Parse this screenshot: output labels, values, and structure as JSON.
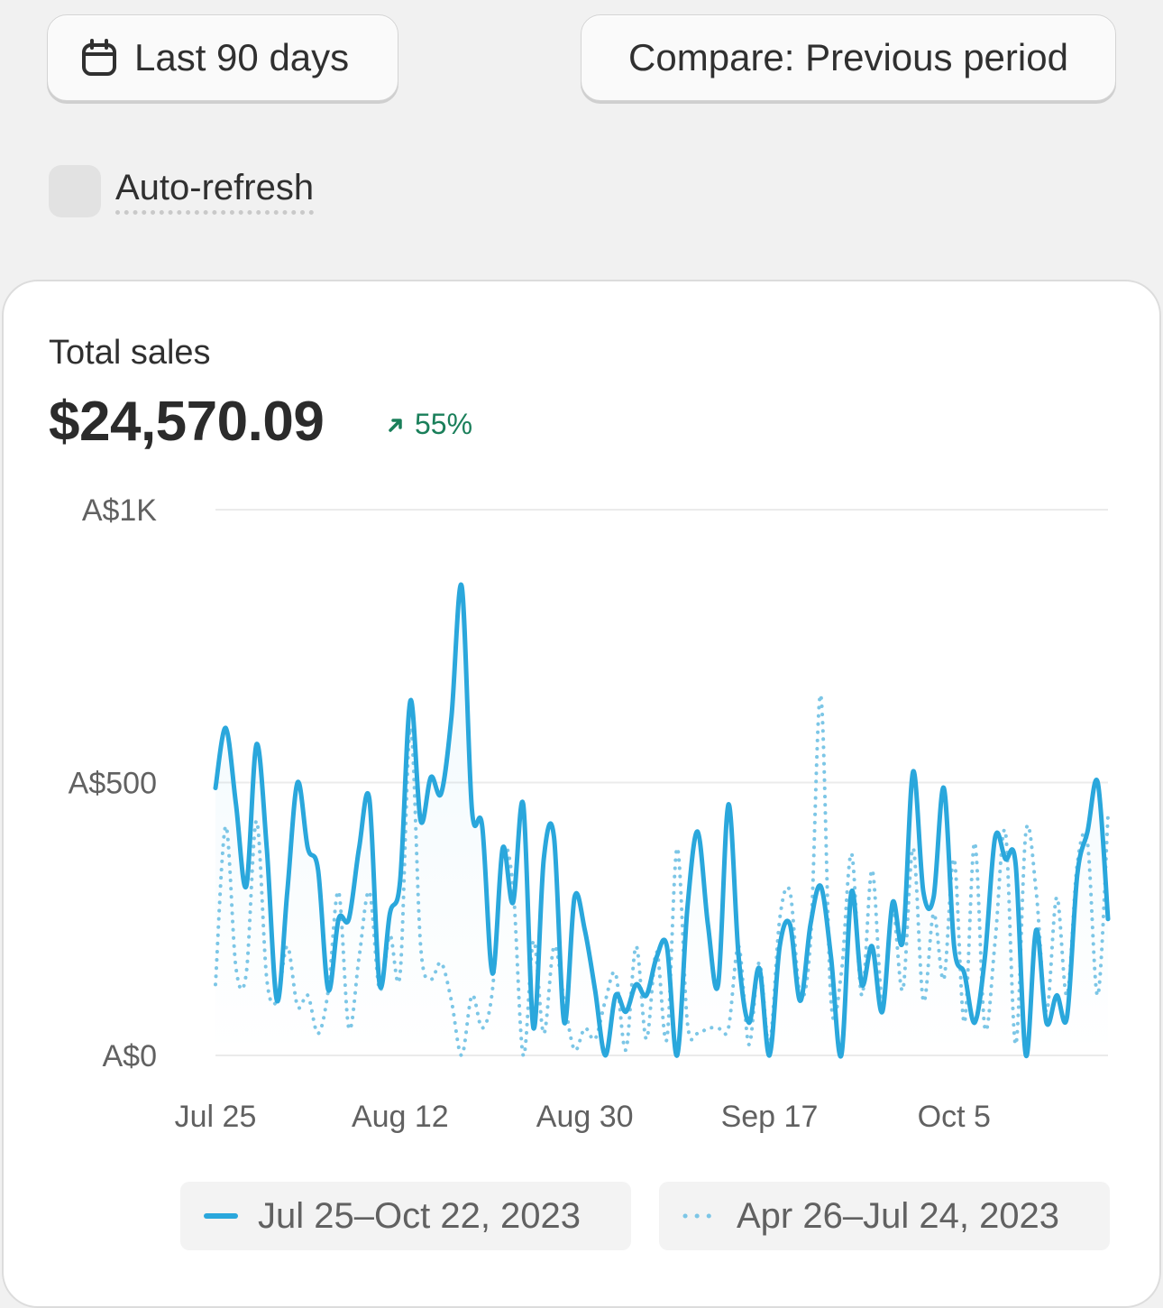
{
  "toolbar": {
    "date_range_label": "Last 90 days",
    "compare_label": "Compare: Previous period"
  },
  "auto_refresh": {
    "label": "Auto-refresh",
    "checked": false
  },
  "card": {
    "metric_label": "Total sales",
    "metric_value": "$24,570.09",
    "delta": "55%",
    "delta_direction": "up",
    "delta_color": "#1a7f5a"
  },
  "colors": {
    "current_series": "#2aa7dc",
    "previous_series": "#7cc6e6"
  },
  "chart_data": {
    "type": "line",
    "y_tick_labels": [
      "A$1K",
      "A$500",
      "A$0"
    ],
    "ylim": [
      0,
      1000
    ],
    "x_tick_labels": [
      "Jul 25",
      "Aug 12",
      "Aug 30",
      "Sep 17",
      "Oct 5"
    ],
    "grid": true,
    "legend_position": "bottom",
    "series": [
      {
        "name": "Jul 25–Oct 22, 2023",
        "style": "solid",
        "values": [
          490,
          600,
          460,
          310,
          570,
          380,
          100,
          300,
          500,
          380,
          340,
          120,
          250,
          250,
          380,
          470,
          130,
          260,
          320,
          650,
          430,
          510,
          480,
          620,
          860,
          450,
          420,
          150,
          380,
          280,
          460,
          50,
          360,
          400,
          60,
          290,
          230,
          120,
          0,
          110,
          80,
          130,
          110,
          180,
          200,
          0,
          270,
          410,
          240,
          130,
          460,
          180,
          60,
          160,
          0,
          200,
          240,
          100,
          240,
          310,
          180,
          0,
          300,
          130,
          200,
          80,
          280,
          210,
          520,
          300,
          290,
          490,
          200,
          150,
          60,
          180,
          400,
          360,
          350,
          0,
          230,
          60,
          110,
          70,
          330,
          410,
          500,
          250
        ]
      },
      {
        "name": "Apr 26–Jul 24, 2023",
        "style": "dotted",
        "values": [
          130,
          420,
          160,
          150,
          430,
          140,
          100,
          200,
          90,
          110,
          40,
          120,
          300,
          50,
          180,
          300,
          120,
          220,
          150,
          600,
          200,
          140,
          170,
          100,
          0,
          110,
          50,
          120,
          370,
          310,
          0,
          210,
          40,
          200,
          100,
          10,
          50,
          30,
          100,
          150,
          10,
          200,
          30,
          190,
          30,
          380,
          60,
          40,
          50,
          50,
          50,
          200,
          20,
          170,
          20,
          250,
          300,
          110,
          210,
          660,
          100,
          150,
          370,
          110,
          340,
          100,
          270,
          120,
          380,
          100,
          260,
          140,
          360,
          60,
          390,
          50,
          210,
          410,
          20,
          410,
          300,
          80,
          290,
          110,
          350,
          390,
          110,
          440
        ]
      }
    ]
  }
}
